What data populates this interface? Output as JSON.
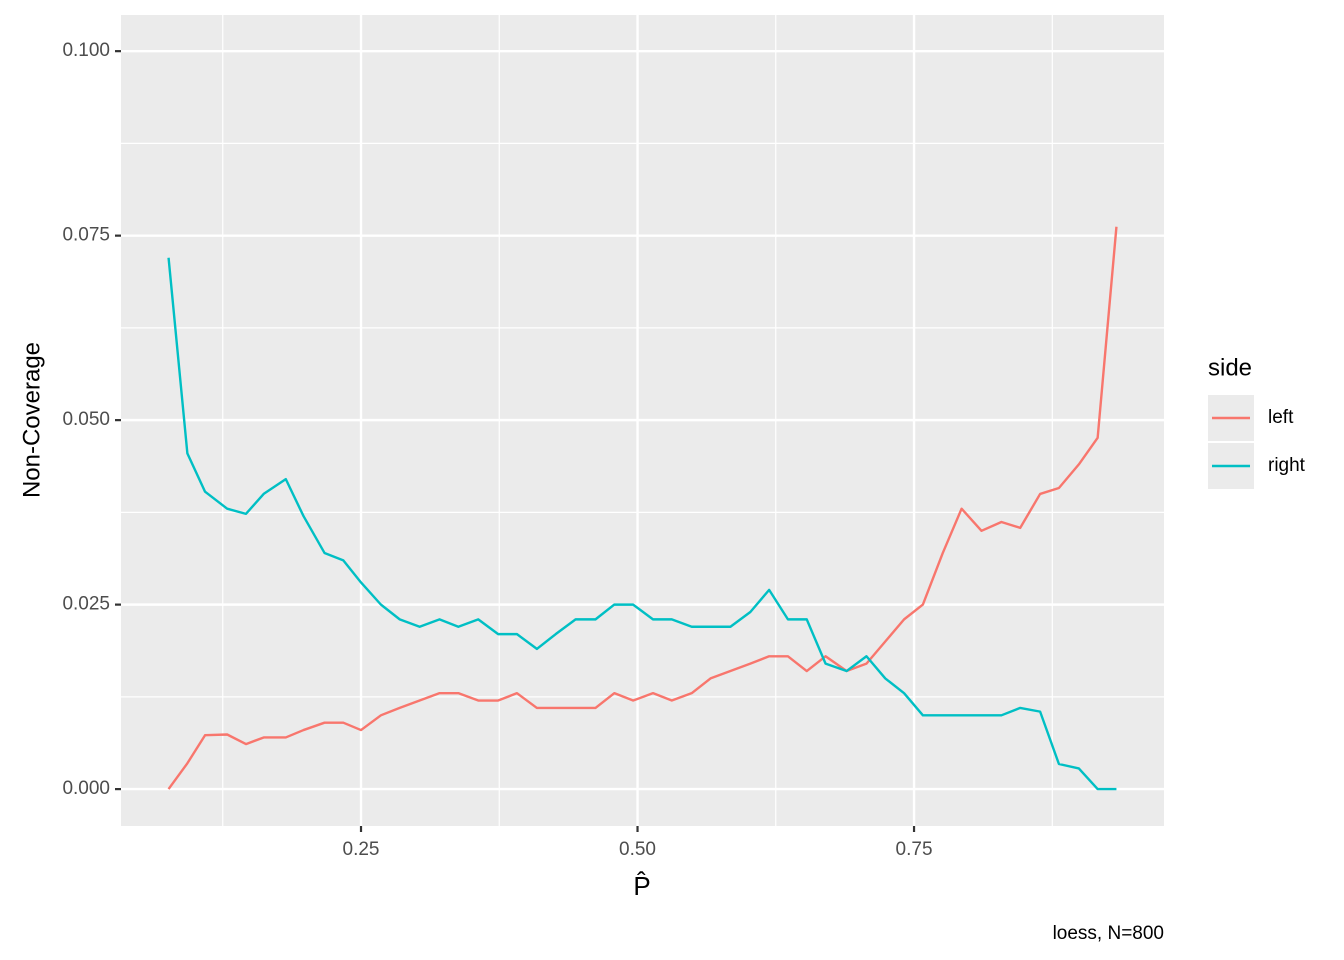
{
  "chart_data": {
    "type": "line",
    "x_label": "P̂",
    "y_label": "Non-Coverage",
    "caption": "loess, N=800",
    "legend_title": "side",
    "x": [
      0.076,
      0.093,
      0.109,
      0.129,
      0.146,
      0.162,
      0.182,
      0.198,
      0.217,
      0.234,
      0.25,
      0.268,
      0.285,
      0.303,
      0.321,
      0.338,
      0.356,
      0.374,
      0.391,
      0.409,
      0.426,
      0.444,
      0.462,
      0.479,
      0.496,
      0.514,
      0.531,
      0.549,
      0.566,
      0.584,
      0.602,
      0.619,
      0.636,
      0.653,
      0.67,
      0.689,
      0.707,
      0.724,
      0.741,
      0.758,
      0.776,
      0.793,
      0.811,
      0.829,
      0.846,
      0.864,
      0.881,
      0.899,
      0.916,
      0.933
    ],
    "series": [
      {
        "name": "left",
        "color": "#f8766d",
        "values": [
          0,
          0.0035,
          0.0073,
          0.0074,
          0.0061,
          0.007,
          0.007,
          0.008,
          0.009,
          0.009,
          0.008,
          0.01,
          0.011,
          0.012,
          0.013,
          0.013,
          0.012,
          0.012,
          0.013,
          0.011,
          0.011,
          0.011,
          0.011,
          0.013,
          0.012,
          0.013,
          0.012,
          0.013,
          0.015,
          0.016,
          0.017,
          0.018,
          0.018,
          0.016,
          0.018,
          0.016,
          0.017,
          0.02,
          0.023,
          0.025,
          0.032,
          0.038,
          0.035,
          0.0362,
          0.0354,
          0.04,
          0.0408,
          0.044,
          0.0476,
          0.0762
        ]
      },
      {
        "name": "right",
        "color": "#00bfc4",
        "values": [
          0.072,
          0.0455,
          0.0403,
          0.038,
          0.0373,
          0.04,
          0.042,
          0.037,
          0.032,
          0.031,
          0.028,
          0.025,
          0.023,
          0.022,
          0.023,
          0.022,
          0.023,
          0.021,
          0.021,
          0.019,
          0.021,
          0.023,
          0.023,
          0.025,
          0.025,
          0.023,
          0.023,
          0.022,
          0.022,
          0.022,
          0.024,
          0.027,
          0.023,
          0.023,
          0.017,
          0.016,
          0.018,
          0.015,
          0.013,
          0.01,
          0.01,
          0.01,
          0.01,
          0.01,
          0.011,
          0.0105,
          0.0034,
          0.0028,
          0,
          0
        ]
      }
    ],
    "xlim": [
      0.033,
      0.976
    ],
    "ylim": [
      -0.005,
      0.1049
    ],
    "xticks": [
      0.25,
      {
        "value": 0.5,
        "label": "0.50"
      },
      0.75
    ],
    "yticks": [
      {
        "value": 0,
        "label": "0.000"
      },
      {
        "value": 0.025,
        "label": "0.025"
      },
      {
        "value": 0.05,
        "label": "0.050"
      },
      {
        "value": 0.075,
        "label": "0.075"
      },
      {
        "value": 0.1,
        "label": "0.100"
      }
    ],
    "xminor": [
      0.125,
      0.375,
      0.625,
      0.875
    ],
    "yminor": [
      0.0125,
      0.0375,
      0.0625,
      0.0875
    ],
    "grid": true,
    "legend": "right"
  }
}
